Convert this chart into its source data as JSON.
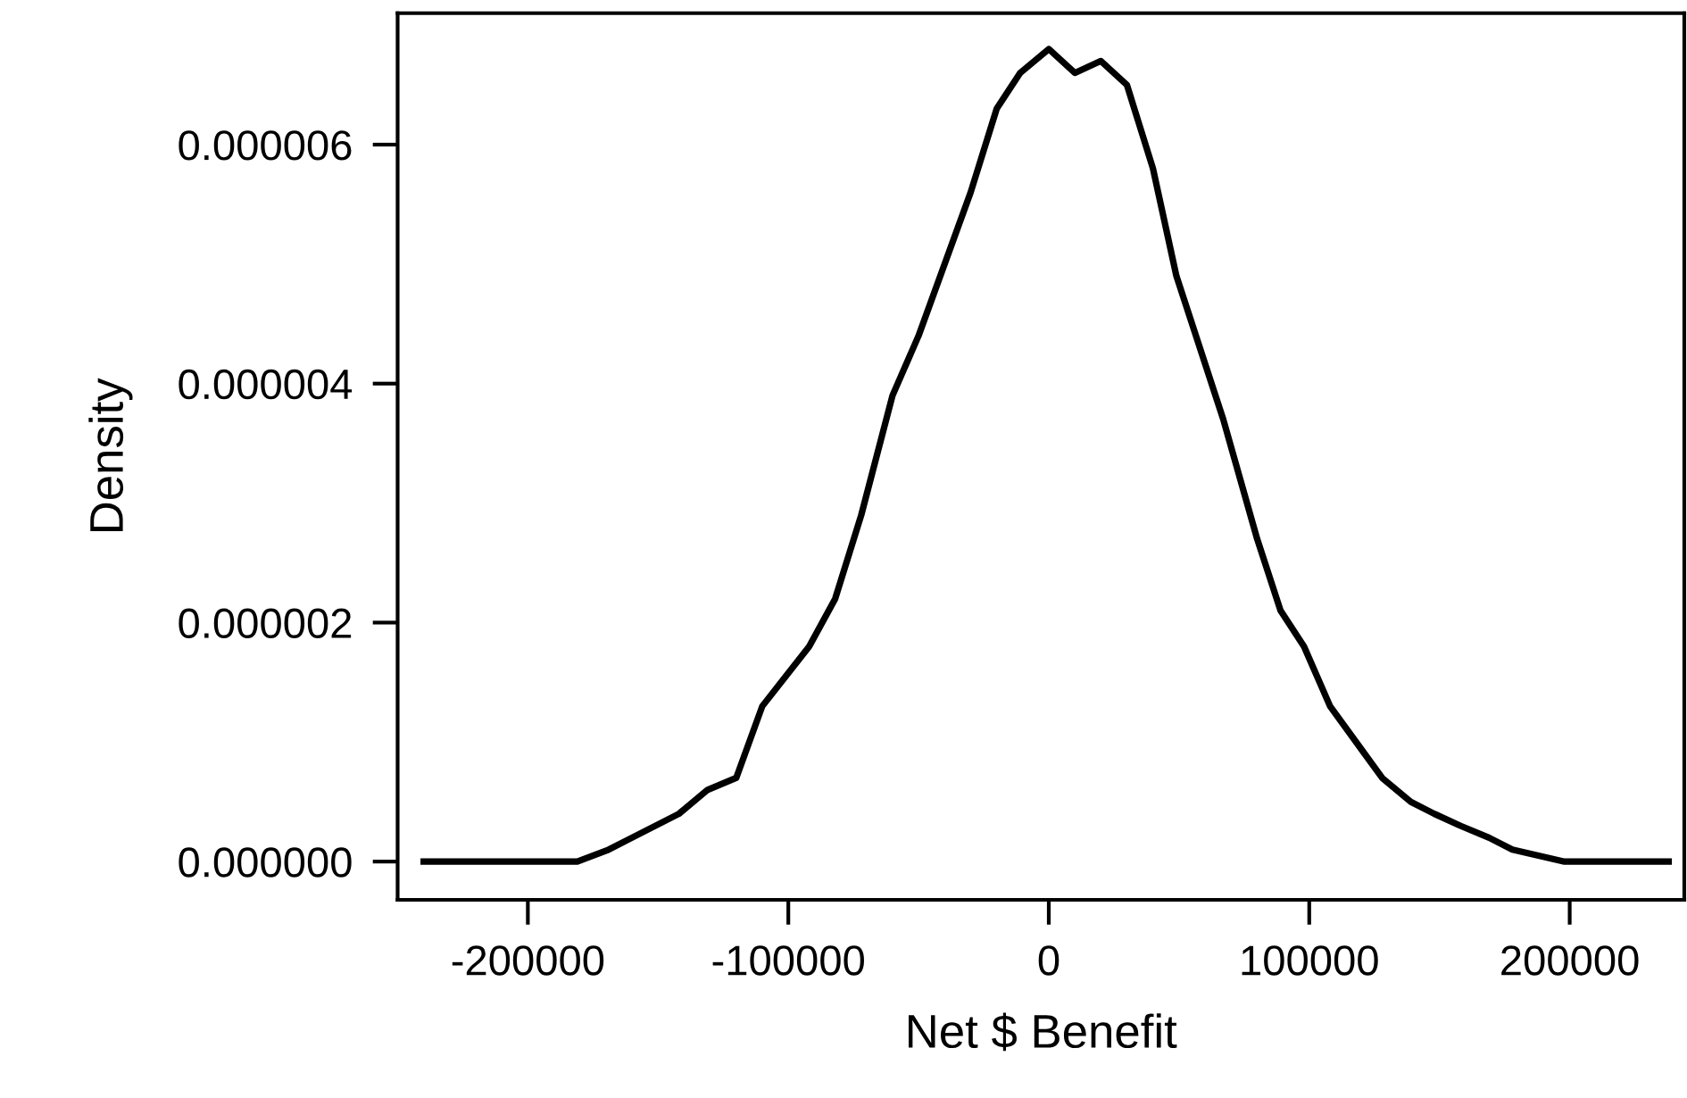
{
  "chart_data": {
    "type": "line",
    "xlabel": "Net $ Benefit",
    "ylabel": "Density",
    "x": [
      -240000,
      -220000,
      -212000,
      -190000,
      -181000,
      -169000,
      -160000,
      -142000,
      -131000,
      -120000,
      -110000,
      -92000,
      -82000,
      -72000,
      -60000,
      -50000,
      -30000,
      -20000,
      -11000,
      0,
      10000,
      20000,
      30000,
      40000,
      49000,
      67000,
      80000,
      89000,
      98000,
      108000,
      128000,
      139000,
      148000,
      158000,
      169000,
      178000,
      198000,
      238000
    ],
    "series": [
      {
        "color": "#000000",
        "values": [
          0,
          0,
          0,
          0,
          0,
          1e-07,
          2e-07,
          4e-07,
          6e-07,
          7e-07,
          1.3e-06,
          1.8e-06,
          2.2e-06,
          2.9e-06,
          3.9e-06,
          4.4e-06,
          5.6e-06,
          6.3e-06,
          6.6e-06,
          6.8e-06,
          6.6e-06,
          6.7e-06,
          6.5e-06,
          5.8e-06,
          4.9e-06,
          3.7e-06,
          2.7e-06,
          2.1e-06,
          1.8e-06,
          1.3e-06,
          7e-07,
          5e-07,
          4e-07,
          3e-07,
          2e-07,
          1e-07,
          0,
          0
        ]
      }
    ],
    "xlim": [
      -250000,
      244000
    ],
    "ylim": [
      -3.2e-07,
      7.1e-06
    ],
    "xticks": [
      -200000,
      -100000,
      0,
      100000,
      200000
    ],
    "yticks": [
      {
        "value": 0,
        "label": "0.000000"
      },
      {
        "value": 2e-06,
        "label": "0.000002"
      },
      {
        "value": 4e-06,
        "label": "0.000004"
      },
      {
        "value": 6e-06,
        "label": "0.000006"
      }
    ],
    "grid": false,
    "marker": "none",
    "line_style": "solid"
  }
}
